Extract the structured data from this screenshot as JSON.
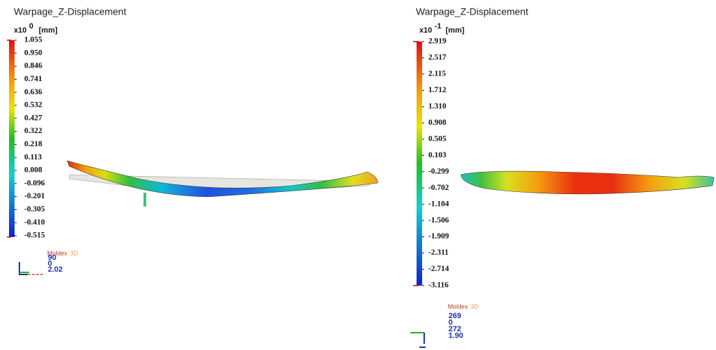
{
  "panels": [
    {
      "title": "Warpage_Z-Displacement",
      "unit_prefix": "x10",
      "exponent": "0",
      "unit": "[mm]",
      "scale_labels": [
        "1.055",
        "0.950",
        "0.846",
        "0.741",
        "0.636",
        "0.532",
        "0.427",
        "0.322",
        "0.218",
        "0.113",
        "0.008",
        "-0.096",
        "-0.201",
        "-0.305",
        "-0.410",
        "-0.515"
      ],
      "logo": {
        "name": "Moldex",
        "suffix": "3D"
      },
      "view_values": [
        "90",
        "0",
        "2.02"
      ]
    },
    {
      "title": "Warpage_Z-Displacement",
      "unit_prefix": "x10",
      "exponent": "-1",
      "unit": "[mm]",
      "scale_labels": [
        "2.919",
        "2.517",
        "2.115",
        "1.712",
        "1.310",
        "0.908",
        "0.505",
        "0.103",
        "-0.299",
        "-0.702",
        "-1.104",
        "-1.506",
        "-1.909",
        "-2.311",
        "-2.714",
        "-3.116"
      ],
      "logo": {
        "name": "Moldex",
        "suffix": "3D"
      },
      "view_values": [
        "269",
        "0",
        "272",
        "1.90"
      ]
    }
  ]
}
